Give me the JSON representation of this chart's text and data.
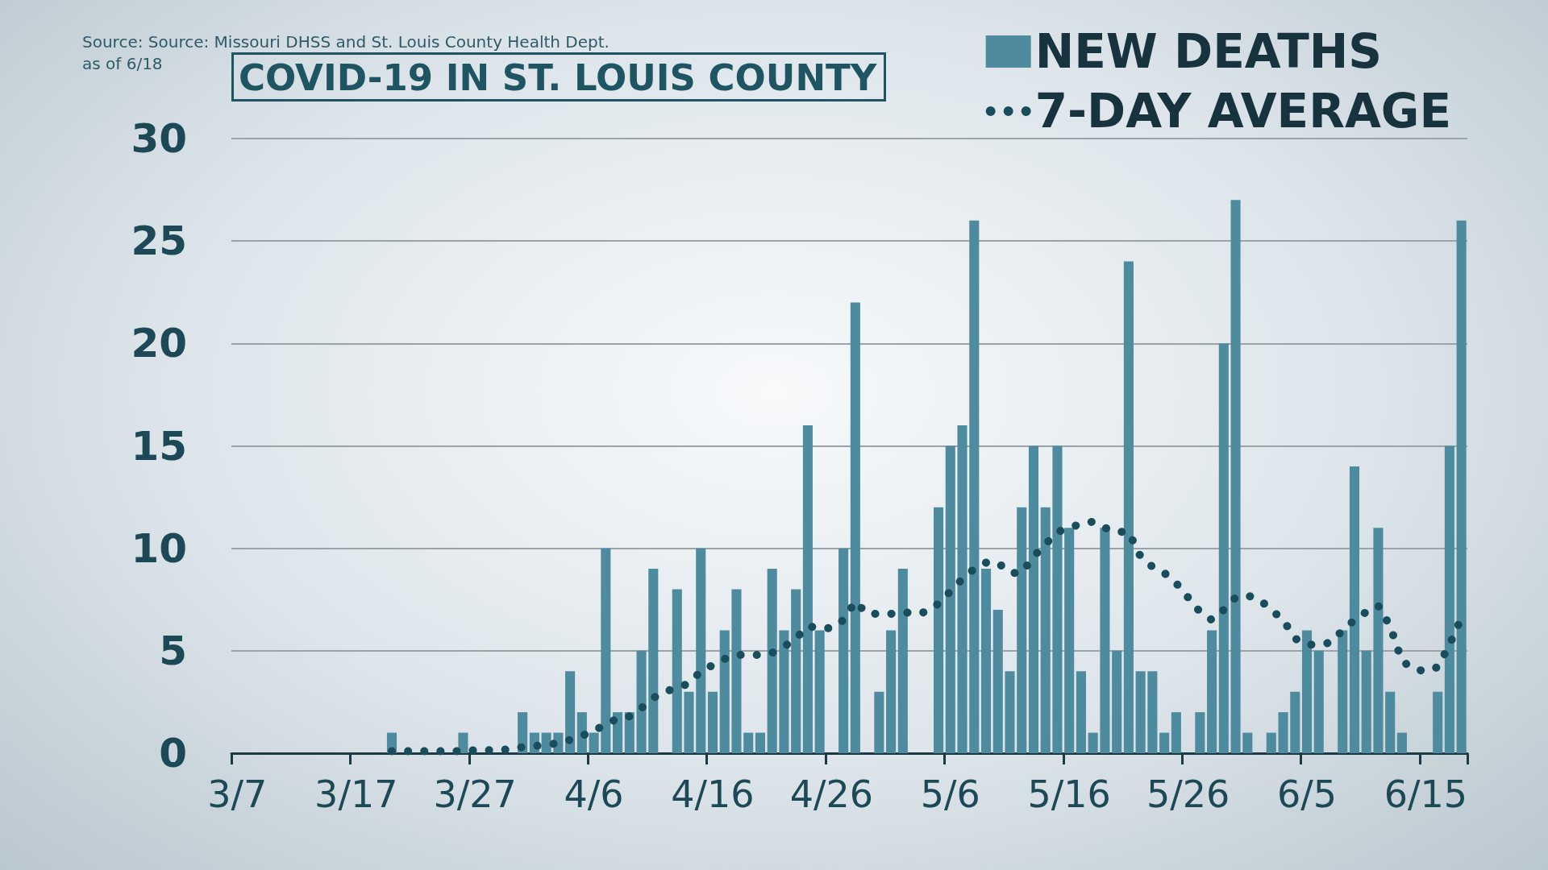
{
  "chart_data": {
    "type": "bar",
    "title": "COVID-19 IN ST. LOUIS COUNTY",
    "annotations": [
      "Source: Source: Missouri DHSS and St. Louis County Health Dept.",
      "as of 6/18"
    ],
    "categories": [
      "3/7",
      null,
      null,
      null,
      null,
      null,
      null,
      null,
      null,
      null,
      "3/17",
      null,
      null,
      null,
      null,
      null,
      null,
      null,
      null,
      null,
      "3/27",
      null,
      null,
      null,
      null,
      null,
      null,
      null,
      null,
      null,
      "4/6",
      null,
      null,
      null,
      null,
      null,
      null,
      null,
      null,
      null,
      "4/16",
      null,
      null,
      null,
      null,
      null,
      null,
      null,
      null,
      null,
      "4/26",
      null,
      null,
      null,
      null,
      null,
      null,
      null,
      null,
      null,
      "5/6",
      null,
      null,
      null,
      null,
      null,
      null,
      null,
      null,
      null,
      "5/16",
      null,
      null,
      null,
      null,
      null,
      null,
      null,
      null,
      null,
      "5/26",
      null,
      null,
      null,
      null,
      null,
      null,
      null,
      null,
      null,
      "6/5",
      null,
      null,
      null,
      null,
      null,
      null,
      null,
      null,
      null,
      "6/15",
      null,
      null,
      null
    ],
    "series": [
      {
        "name": "NEW DEATHS",
        "color": "#4f8b9e",
        "values": [
          0,
          0,
          0,
          0,
          0,
          0,
          0,
          0,
          0,
          0,
          0,
          0,
          0,
          1,
          0,
          0,
          0,
          0,
          0,
          1,
          0,
          0,
          0,
          0,
          2,
          1,
          1,
          1,
          4,
          2,
          1,
          10,
          2,
          2,
          5,
          9,
          0,
          8,
          3,
          10,
          3,
          6,
          8,
          1,
          1,
          9,
          6,
          8,
          16,
          6,
          0,
          10,
          22,
          0,
          3,
          6,
          9,
          0,
          0,
          12,
          15,
          16,
          26,
          9,
          7,
          4,
          12,
          15,
          12,
          15,
          11,
          4,
          1,
          11,
          5,
          24,
          4,
          4,
          1,
          2,
          0,
          2,
          6,
          20,
          27,
          1,
          0,
          1,
          2,
          3,
          6,
          5,
          0,
          6,
          14,
          5,
          11,
          3,
          1,
          0,
          0,
          3,
          15,
          26
        ]
      },
      {
        "name": "7-DAY AVERAGE",
        "type": "line",
        "color": "#1a4d5c",
        "line_style": "dotted",
        "marker": "none",
        "values": [
          null,
          null,
          null,
          null,
          null,
          null,
          null,
          null,
          null,
          null,
          null,
          null,
          null,
          0.1,
          0.1,
          0.1,
          0.1,
          0.1,
          0.1,
          0.1,
          0.15,
          0.15,
          0.15,
          0.2,
          0.3,
          0.35,
          0.4,
          0.5,
          0.65,
          0.85,
          1.1,
          1.4,
          1.7,
          1.8,
          2.2,
          2.7,
          3.0,
          3.2,
          3.4,
          4.0,
          4.3,
          4.6,
          4.8,
          4.8,
          4.8,
          4.9,
          5.2,
          5.6,
          6.2,
          6.1,
          6.1,
          6.5,
          7.4,
          6.8,
          6.8,
          6.8,
          6.9,
          6.8,
          6.9,
          7.3,
          7.9,
          8.5,
          9.0,
          9.3,
          9.3,
          8.8,
          8.8,
          9.6,
          10.2,
          10.8,
          11.0,
          11.2,
          11.3,
          11.0,
          10.8,
          10.8,
          9.6,
          9.1,
          8.8,
          8.3,
          7.6,
          6.9,
          6.5,
          7.0,
          7.6,
          7.7,
          7.5,
          7.0,
          6.5,
          5.6,
          5.3,
          5.3,
          5.4,
          6.0,
          6.5,
          6.9,
          7.2,
          6.2,
          4.5,
          4.1,
          4.0,
          4.2,
          5.3,
          6.6
        ]
      }
    ],
    "ylim": [
      0,
      30
    ],
    "yticks": [
      0,
      5,
      10,
      15,
      20,
      25,
      30
    ],
    "grid": "y",
    "legend": "top right"
  }
}
